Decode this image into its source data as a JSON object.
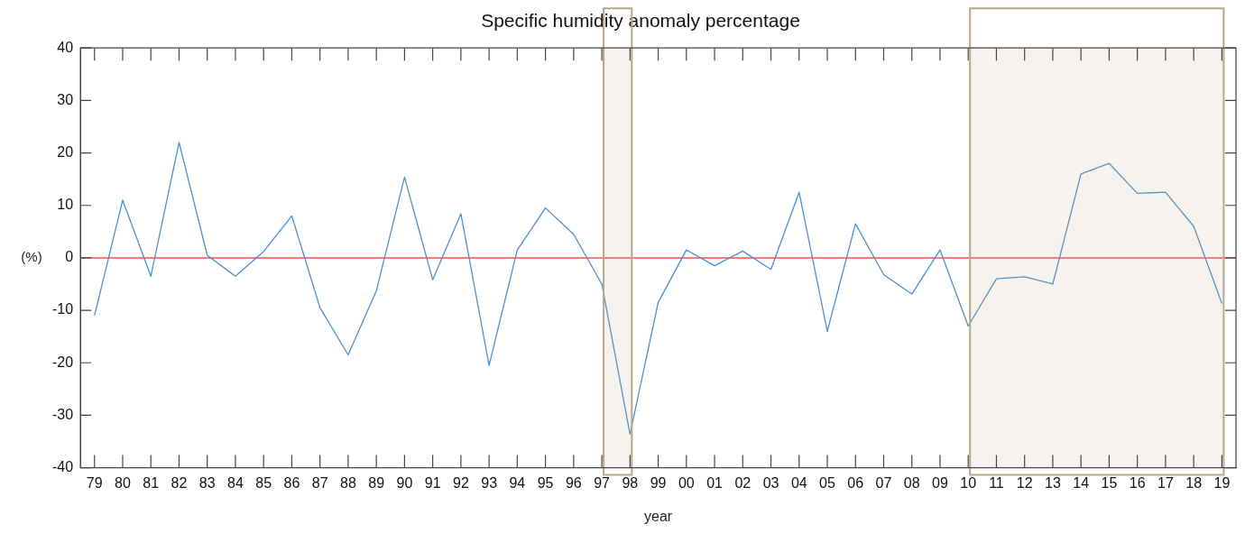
{
  "chart_data": {
    "type": "line",
    "title": "Specific humidity anomaly percentage",
    "xlabel": "year",
    "ylabel": "(%)",
    "categories": [
      "79",
      "80",
      "81",
      "82",
      "83",
      "84",
      "85",
      "86",
      "87",
      "88",
      "89",
      "90",
      "91",
      "92",
      "93",
      "94",
      "95",
      "96",
      "97",
      "98",
      "99",
      "00",
      "01",
      "02",
      "03",
      "04",
      "05",
      "06",
      "07",
      "08",
      "09",
      "10",
      "11",
      "12",
      "13",
      "14",
      "15",
      "16",
      "17",
      "18",
      "19"
    ],
    "series": [
      {
        "color": "#4a90d0",
        "values": [
          -11,
          11,
          -3.5,
          22,
          0.5,
          -3.5,
          1.2,
          8,
          -9.5,
          -18.5,
          -6.3,
          15.4,
          -4.2,
          8.4,
          -20.5,
          1.5,
          9.5,
          4.5,
          -5,
          -33.6,
          -8.5,
          1.5,
          -1.5,
          1.3,
          -2.2,
          12.5,
          -14,
          6.5,
          -3.2,
          -6.9,
          1.5,
          -13,
          -4,
          -3.6,
          -5,
          16,
          18,
          12.3,
          12.5,
          6,
          -8.7
        ]
      }
    ],
    "ylim": [
      -40,
      40
    ],
    "yticks": [
      -40,
      -30,
      -20,
      -10,
      0,
      10,
      20,
      30,
      40
    ],
    "ref_lines": [
      {
        "axis": "y",
        "value": 0,
        "color": "#f05050"
      }
    ],
    "bands": [
      {
        "axis": "x",
        "from": "97",
        "to": "98",
        "color": "#b8a888"
      },
      {
        "axis": "x",
        "from": "10",
        "to": "19",
        "color": "#b8a888"
      }
    ],
    "grid": false,
    "legend": false,
    "marker": "none",
    "line_style": "solid"
  }
}
